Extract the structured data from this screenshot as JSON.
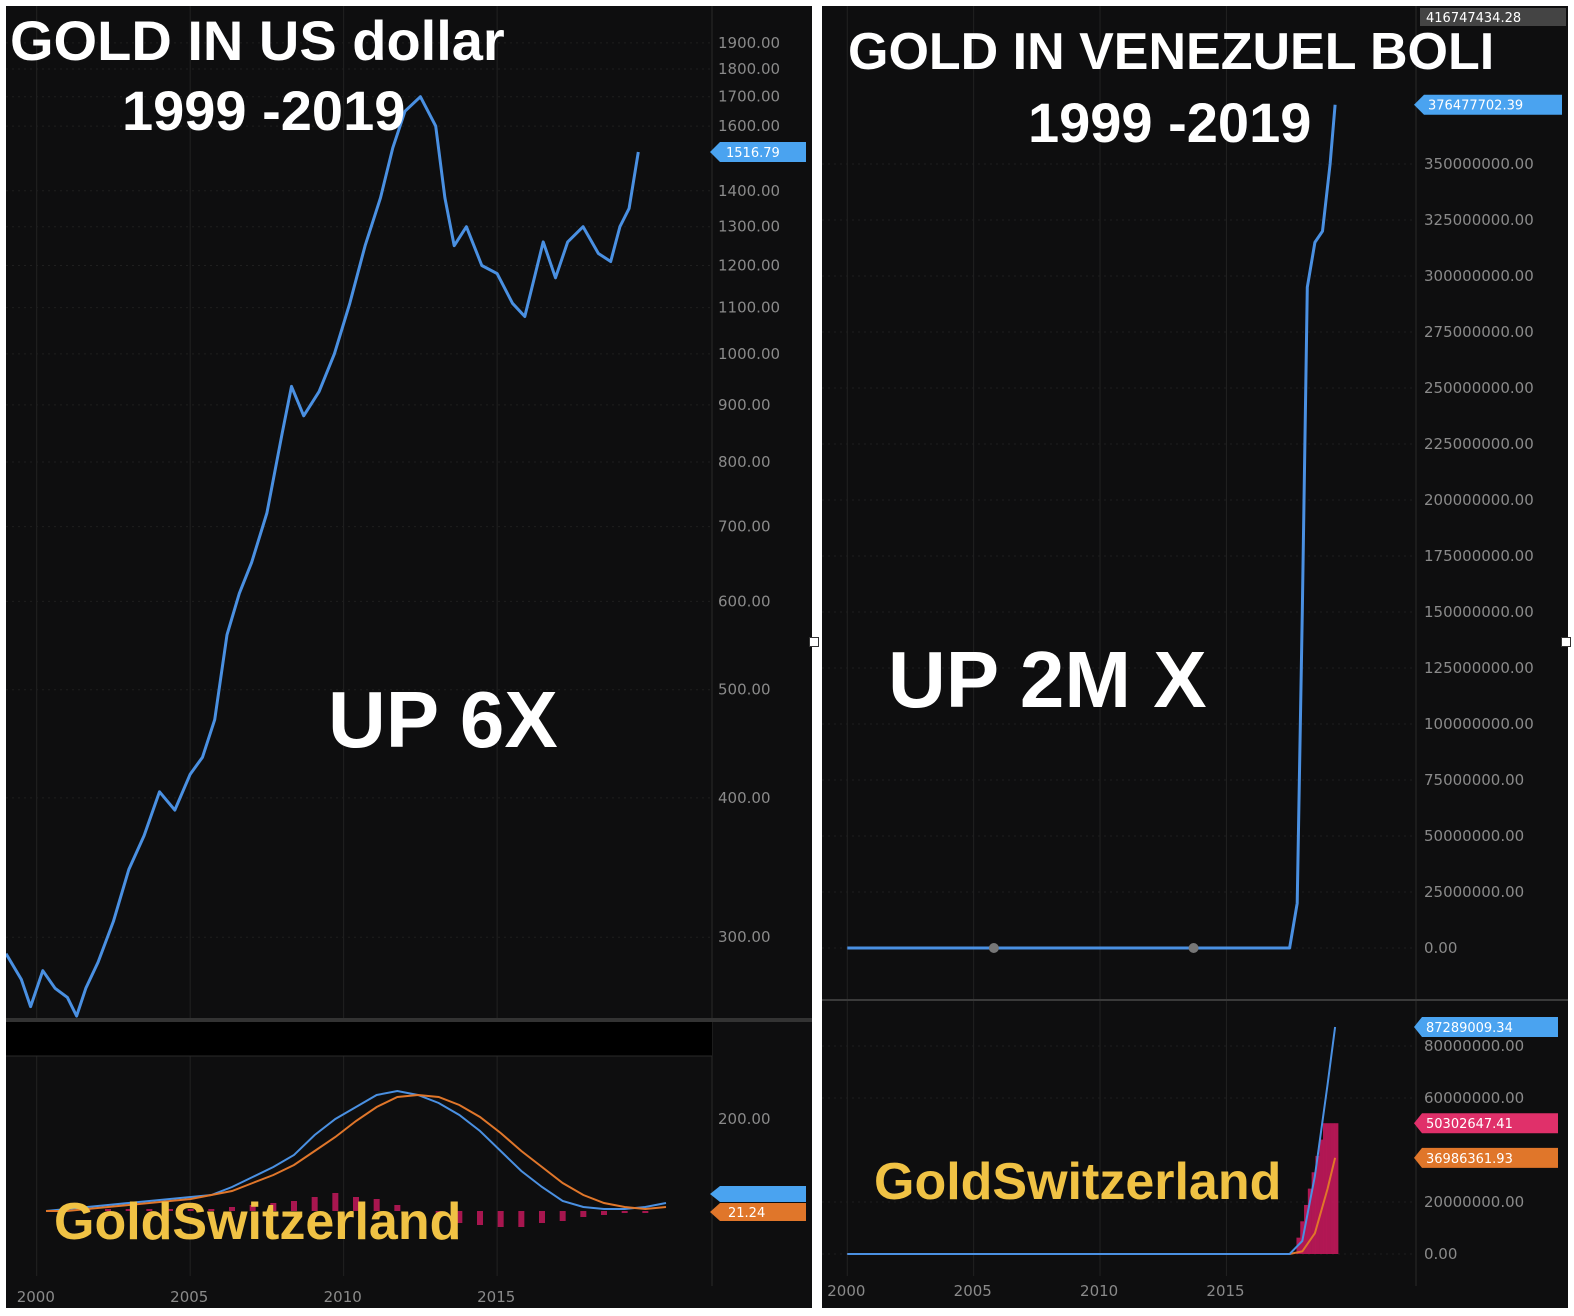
{
  "chart_data": [
    {
      "type": "line",
      "title": "GOLD IN US dollar",
      "subtitle": "1999 -2019",
      "annotation": "UP 6X",
      "watermark": "GoldSwitzerland",
      "y_scale": "log",
      "ylim": [
        255,
        2050
      ],
      "y_ticks": [
        "1900.00",
        "1800.00",
        "1700.00",
        "1600.00",
        "1400.00",
        "1300.00",
        "1200.00",
        "1100.00",
        "1000.00",
        "900.00",
        "800.00",
        "700.00",
        "600.00",
        "500.00",
        "400.00",
        "300.00"
      ],
      "last_price_label": "1516.79",
      "x_ticks": [
        "2000",
        "2005",
        "2010",
        "2015"
      ],
      "xlim": [
        1999.0,
        2022.0
      ],
      "series": [
        {
          "x": [
            1999.0,
            1999.5,
            1999.8,
            2000.2,
            2000.6,
            2001.0,
            2001.3,
            2001.6,
            2002.0,
            2002.5,
            2003.0,
            2003.5,
            2004.0,
            2004.5,
            2005.0,
            2005.4,
            2005.8,
            2006.2,
            2006.6,
            2007.0,
            2007.5,
            2008.0,
            2008.3,
            2008.7,
            2009.2,
            2009.7,
            2010.2,
            2010.7,
            2011.2,
            2011.6,
            2012.0,
            2012.5,
            2013.0,
            2013.3,
            2013.6,
            2014.0,
            2014.5,
            2015.0,
            2015.5,
            2015.9,
            2016.5,
            2016.9,
            2017.3,
            2017.8,
            2018.3,
            2018.7,
            2019.0,
            2019.3,
            2019.6
          ],
          "y": [
            290,
            275,
            260,
            280,
            270,
            265,
            255,
            270,
            285,
            310,
            345,
            370,
            405,
            390,
            420,
            435,
            470,
            560,
            610,
            650,
            720,
            850,
            935,
            880,
            925,
            1000,
            1110,
            1250,
            1380,
            1530,
            1650,
            1700,
            1600,
            1380,
            1250,
            1300,
            1200,
            1180,
            1110,
            1080,
            1260,
            1170,
            1260,
            1300,
            1230,
            1210,
            1300,
            1350,
            1516.79
          ]
        }
      ],
      "indicator": {
        "y_tick": "200.00",
        "labels": [
          "21.24"
        ],
        "macd_line": [
          0,
          1,
          2,
          3,
          4,
          5,
          6,
          7,
          8,
          12,
          17,
          22,
          28,
          38,
          46,
          52,
          58,
          60,
          58,
          54,
          48,
          40,
          30,
          20,
          12,
          5,
          2,
          1,
          1,
          2,
          4
        ],
        "signal_line": [
          0,
          0,
          1,
          2,
          3,
          4,
          5,
          6,
          8,
          10,
          14,
          18,
          23,
          30,
          37,
          45,
          52,
          57,
          58,
          57,
          53,
          47,
          39,
          30,
          22,
          14,
          8,
          4,
          2,
          1,
          2
        ],
        "histogram": [
          0,
          1,
          1,
          1,
          1,
          1,
          1,
          1,
          1,
          2,
          3,
          4,
          5,
          7,
          9,
          7,
          6,
          3,
          0,
          -3,
          -6,
          -7,
          -8,
          -8,
          -6,
          -5,
          -3,
          -2,
          -1,
          -1,
          0
        ]
      },
      "colors": {
        "line": "#4a90e2",
        "signal": "#e0762a",
        "hist": "#c2185b",
        "badge": "#4aa3f0",
        "badge_orange": "#e0762a"
      }
    },
    {
      "type": "line",
      "title": "GOLD IN VENEZUEL BOLI",
      "subtitle": "1999 -2019",
      "annotation": "UP 2M X",
      "watermark": "GoldSwitzerland",
      "ylim": [
        0,
        416747434.28
      ],
      "y_ticks": [
        "350000000.00",
        "325000000.00",
        "300000000.00",
        "275000000.00",
        "250000000.00",
        "225000000.00",
        "200000000.00",
        "175000000.00",
        "150000000.00",
        "125000000.00",
        "100000000.00",
        "75000000.00",
        "50000000.00",
        "25000000.00",
        "0.00"
      ],
      "top_label": "416747434.28",
      "last_price_label": "376477702.39",
      "x_ticks": [
        "2000",
        "2005",
        "2010",
        "2015"
      ],
      "xlim": [
        1999.0,
        2022.5
      ],
      "series": [
        {
          "x": [
            2000.0,
            2005.0,
            2010.0,
            2017.5,
            2017.8,
            2018.0,
            2018.2,
            2018.5,
            2018.8,
            2019.1,
            2019.3
          ],
          "y": [
            0,
            0,
            0,
            0,
            20000000,
            150000000,
            295000000,
            315000000,
            320000000,
            350000000,
            376477702.39
          ]
        }
      ],
      "indicator": {
        "y_ticks": [
          "80000000.00",
          "60000000.00",
          "20000000.00",
          "0.00"
        ],
        "labels": [
          "87289009.34",
          "50302647.41",
          "36986361.93"
        ],
        "macd_x": [
          2000.0,
          2017.5,
          2018.0,
          2018.5,
          2019.0,
          2019.3
        ],
        "macd": [
          0,
          0,
          5000000,
          30000000,
          65000000,
          87289009.34
        ],
        "signal": [
          0,
          0,
          1000000,
          8000000,
          25000000,
          36986361.93
        ],
        "hist": [
          0,
          0,
          4000000,
          22000000,
          40000000,
          50302647.41
        ]
      },
      "colors": {
        "line": "#4a90e2",
        "signal": "#e0762a",
        "hist": "#c2185b",
        "badge": "#4aa3f0",
        "badge_pink": "#e0306a",
        "badge_orange": "#e0762a"
      }
    }
  ]
}
